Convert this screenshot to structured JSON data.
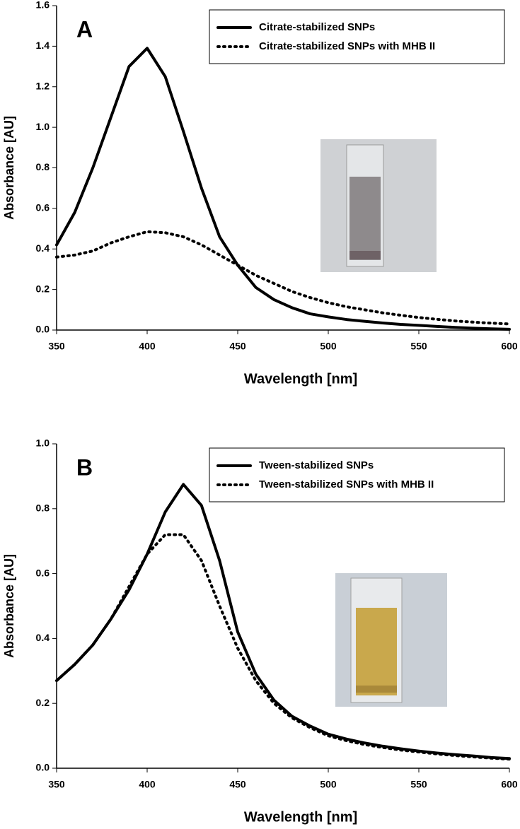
{
  "chart_data": [
    {
      "type": "line",
      "panel_label": "A",
      "x_label": "Wavelength [nm]",
      "y_label": "Absorbance [AU]",
      "x": [
        350,
        360,
        370,
        380,
        390,
        400,
        410,
        420,
        430,
        440,
        450,
        460,
        470,
        480,
        490,
        500,
        510,
        520,
        530,
        540,
        550,
        560,
        570,
        580,
        590,
        600
      ],
      "series": [
        {
          "name": "Citrate-stabilized SNPs",
          "color": "#000000",
          "style": "solid",
          "values": [
            0.42,
            0.58,
            0.8,
            1.05,
            1.3,
            1.39,
            1.25,
            0.98,
            0.7,
            0.46,
            0.32,
            0.21,
            0.15,
            0.11,
            0.08,
            0.065,
            0.052,
            0.043,
            0.035,
            0.028,
            0.023,
            0.018,
            0.013,
            0.009,
            0.006,
            0.004
          ]
        },
        {
          "name": "Citrate-stabilized SNPs with MHB II",
          "color": "#000000",
          "style": "dotted",
          "values": [
            0.36,
            0.37,
            0.39,
            0.43,
            0.46,
            0.485,
            0.48,
            0.46,
            0.42,
            0.37,
            0.32,
            0.27,
            0.23,
            0.19,
            0.16,
            0.135,
            0.115,
            0.1,
            0.085,
            0.073,
            0.062,
            0.053,
            0.045,
            0.039,
            0.034,
            0.03
          ]
        }
      ],
      "xlim": [
        350,
        600
      ],
      "xticks": [
        350,
        400,
        450,
        500,
        550,
        600
      ],
      "ylim": [
        0,
        1.6
      ],
      "yticks": [
        {
          "value": 0,
          "label": "0.0"
        },
        0.2,
        0.4,
        0.6,
        0.8,
        {
          "value": 1,
          "label": "1.0"
        },
        1.2,
        1.4,
        1.6
      ],
      "legend": "upper right"
    },
    {
      "type": "line",
      "panel_label": "B",
      "x_label": "Wavelength [nm]",
      "y_label": "Absorbance [AU]",
      "x": [
        350,
        360,
        370,
        380,
        390,
        400,
        410,
        420,
        430,
        440,
        450,
        460,
        470,
        480,
        490,
        500,
        510,
        520,
        530,
        540,
        550,
        560,
        570,
        580,
        590,
        600
      ],
      "series": [
        {
          "name": "Tween-stabilized SNPs",
          "color": "#000000",
          "style": "solid",
          "values": [
            0.27,
            0.32,
            0.38,
            0.46,
            0.55,
            0.66,
            0.79,
            0.875,
            0.81,
            0.64,
            0.42,
            0.29,
            0.21,
            0.16,
            0.13,
            0.105,
            0.09,
            0.078,
            0.068,
            0.06,
            0.053,
            0.047,
            0.042,
            0.038,
            0.033,
            0.03
          ]
        },
        {
          "name": "Tween-stabilized SNPs with MHB II",
          "color": "#000000",
          "style": "dotted",
          "values": [
            0.27,
            0.32,
            0.38,
            0.46,
            0.56,
            0.66,
            0.72,
            0.72,
            0.64,
            0.5,
            0.37,
            0.27,
            0.2,
            0.155,
            0.125,
            0.1,
            0.085,
            0.073,
            0.064,
            0.056,
            0.05,
            0.044,
            0.039,
            0.035,
            0.031,
            0.028
          ]
        }
      ],
      "xlim": [
        350,
        600
      ],
      "xticks": [
        350,
        400,
        450,
        500,
        550,
        600
      ],
      "ylim": [
        0,
        1
      ],
      "yticks": [
        {
          "value": 0,
          "label": "0.0"
        },
        0.2,
        0.4,
        0.6,
        0.8,
        {
          "value": 1,
          "label": "1.0"
        }
      ],
      "legend": "upper right"
    }
  ]
}
